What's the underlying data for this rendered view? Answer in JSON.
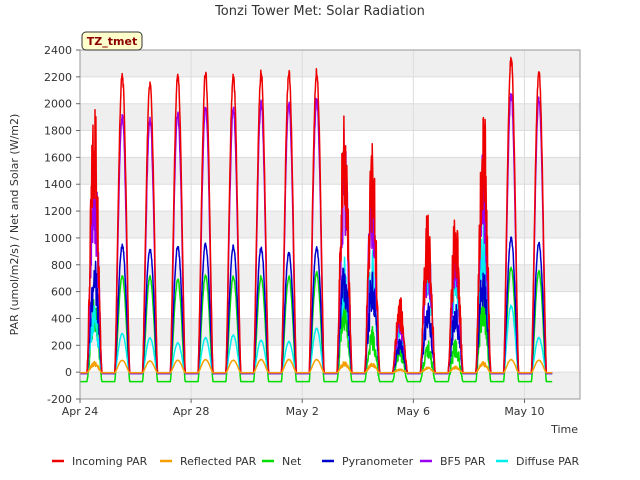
{
  "chart_data": {
    "type": "line",
    "title": "Tonzi Tower Met: Solar Radiation",
    "xlabel": "Time",
    "ylabel": "PAR (umol/m2/s) / Net and Solar (W/m2)",
    "badge": "TZ_tmet",
    "ylim": [
      -200,
      2400
    ],
    "yticks": [
      -200,
      0,
      200,
      400,
      600,
      800,
      1000,
      1200,
      1400,
      1600,
      1800,
      2000,
      2200,
      2400
    ],
    "xlim_days": [
      0,
      18
    ],
    "xticks": [
      {
        "day": 0,
        "label": "Apr 24"
      },
      {
        "day": 4,
        "label": "Apr 28"
      },
      {
        "day": 8,
        "label": "May 2"
      },
      {
        "day": 12,
        "label": "May 6"
      },
      {
        "day": 16,
        "label": "May 10"
      }
    ],
    "legend_position": "bottom",
    "series": [
      {
        "name": "Incoming PAR",
        "color": "#ee0000",
        "night": -5,
        "peaks": [
          2160,
          2240,
          2180,
          2240,
          2260,
          2240,
          2260,
          2260,
          2280,
          2130,
          1800,
          570,
          1210,
          1240,
          2080,
          2370,
          2280
        ]
      },
      {
        "name": "Reflected PAR",
        "color": "#f5a000",
        "night": -5,
        "peaks": [
          80,
          90,
          85,
          90,
          95,
          90,
          95,
          95,
          95,
          80,
          70,
          25,
          40,
          45,
          80,
          95,
          90
        ]
      },
      {
        "name": "Net",
        "color": "#00dd00",
        "night": -70,
        "peaks": [
          560,
          730,
          720,
          700,
          730,
          720,
          720,
          720,
          750,
          600,
          350,
          200,
          250,
          250,
          650,
          790,
          760
        ]
      },
      {
        "name": "Pyranometer",
        "color": "#0000cc",
        "night": -10,
        "peaks": [
          920,
          960,
          930,
          950,
          970,
          950,
          940,
          900,
          940,
          870,
          780,
          250,
          520,
          540,
          900,
          1010,
          970
        ]
      },
      {
        "name": "BF5 PAR",
        "color": "#9900ee",
        "night": -10,
        "peaks": [
          1720,
          1940,
          1910,
          1950,
          2000,
          1990,
          2030,
          2040,
          2060,
          1870,
          1580,
          480,
          1040,
          1050,
          1810,
          2100,
          2060
        ]
      },
      {
        "name": "Diffuse PAR",
        "color": "#00eeee",
        "night": -10,
        "peaks": [
          530,
          290,
          260,
          220,
          260,
          280,
          240,
          230,
          330,
          900,
          960,
          460,
          1010,
          900,
          1190,
          500,
          260
        ]
      }
    ]
  }
}
